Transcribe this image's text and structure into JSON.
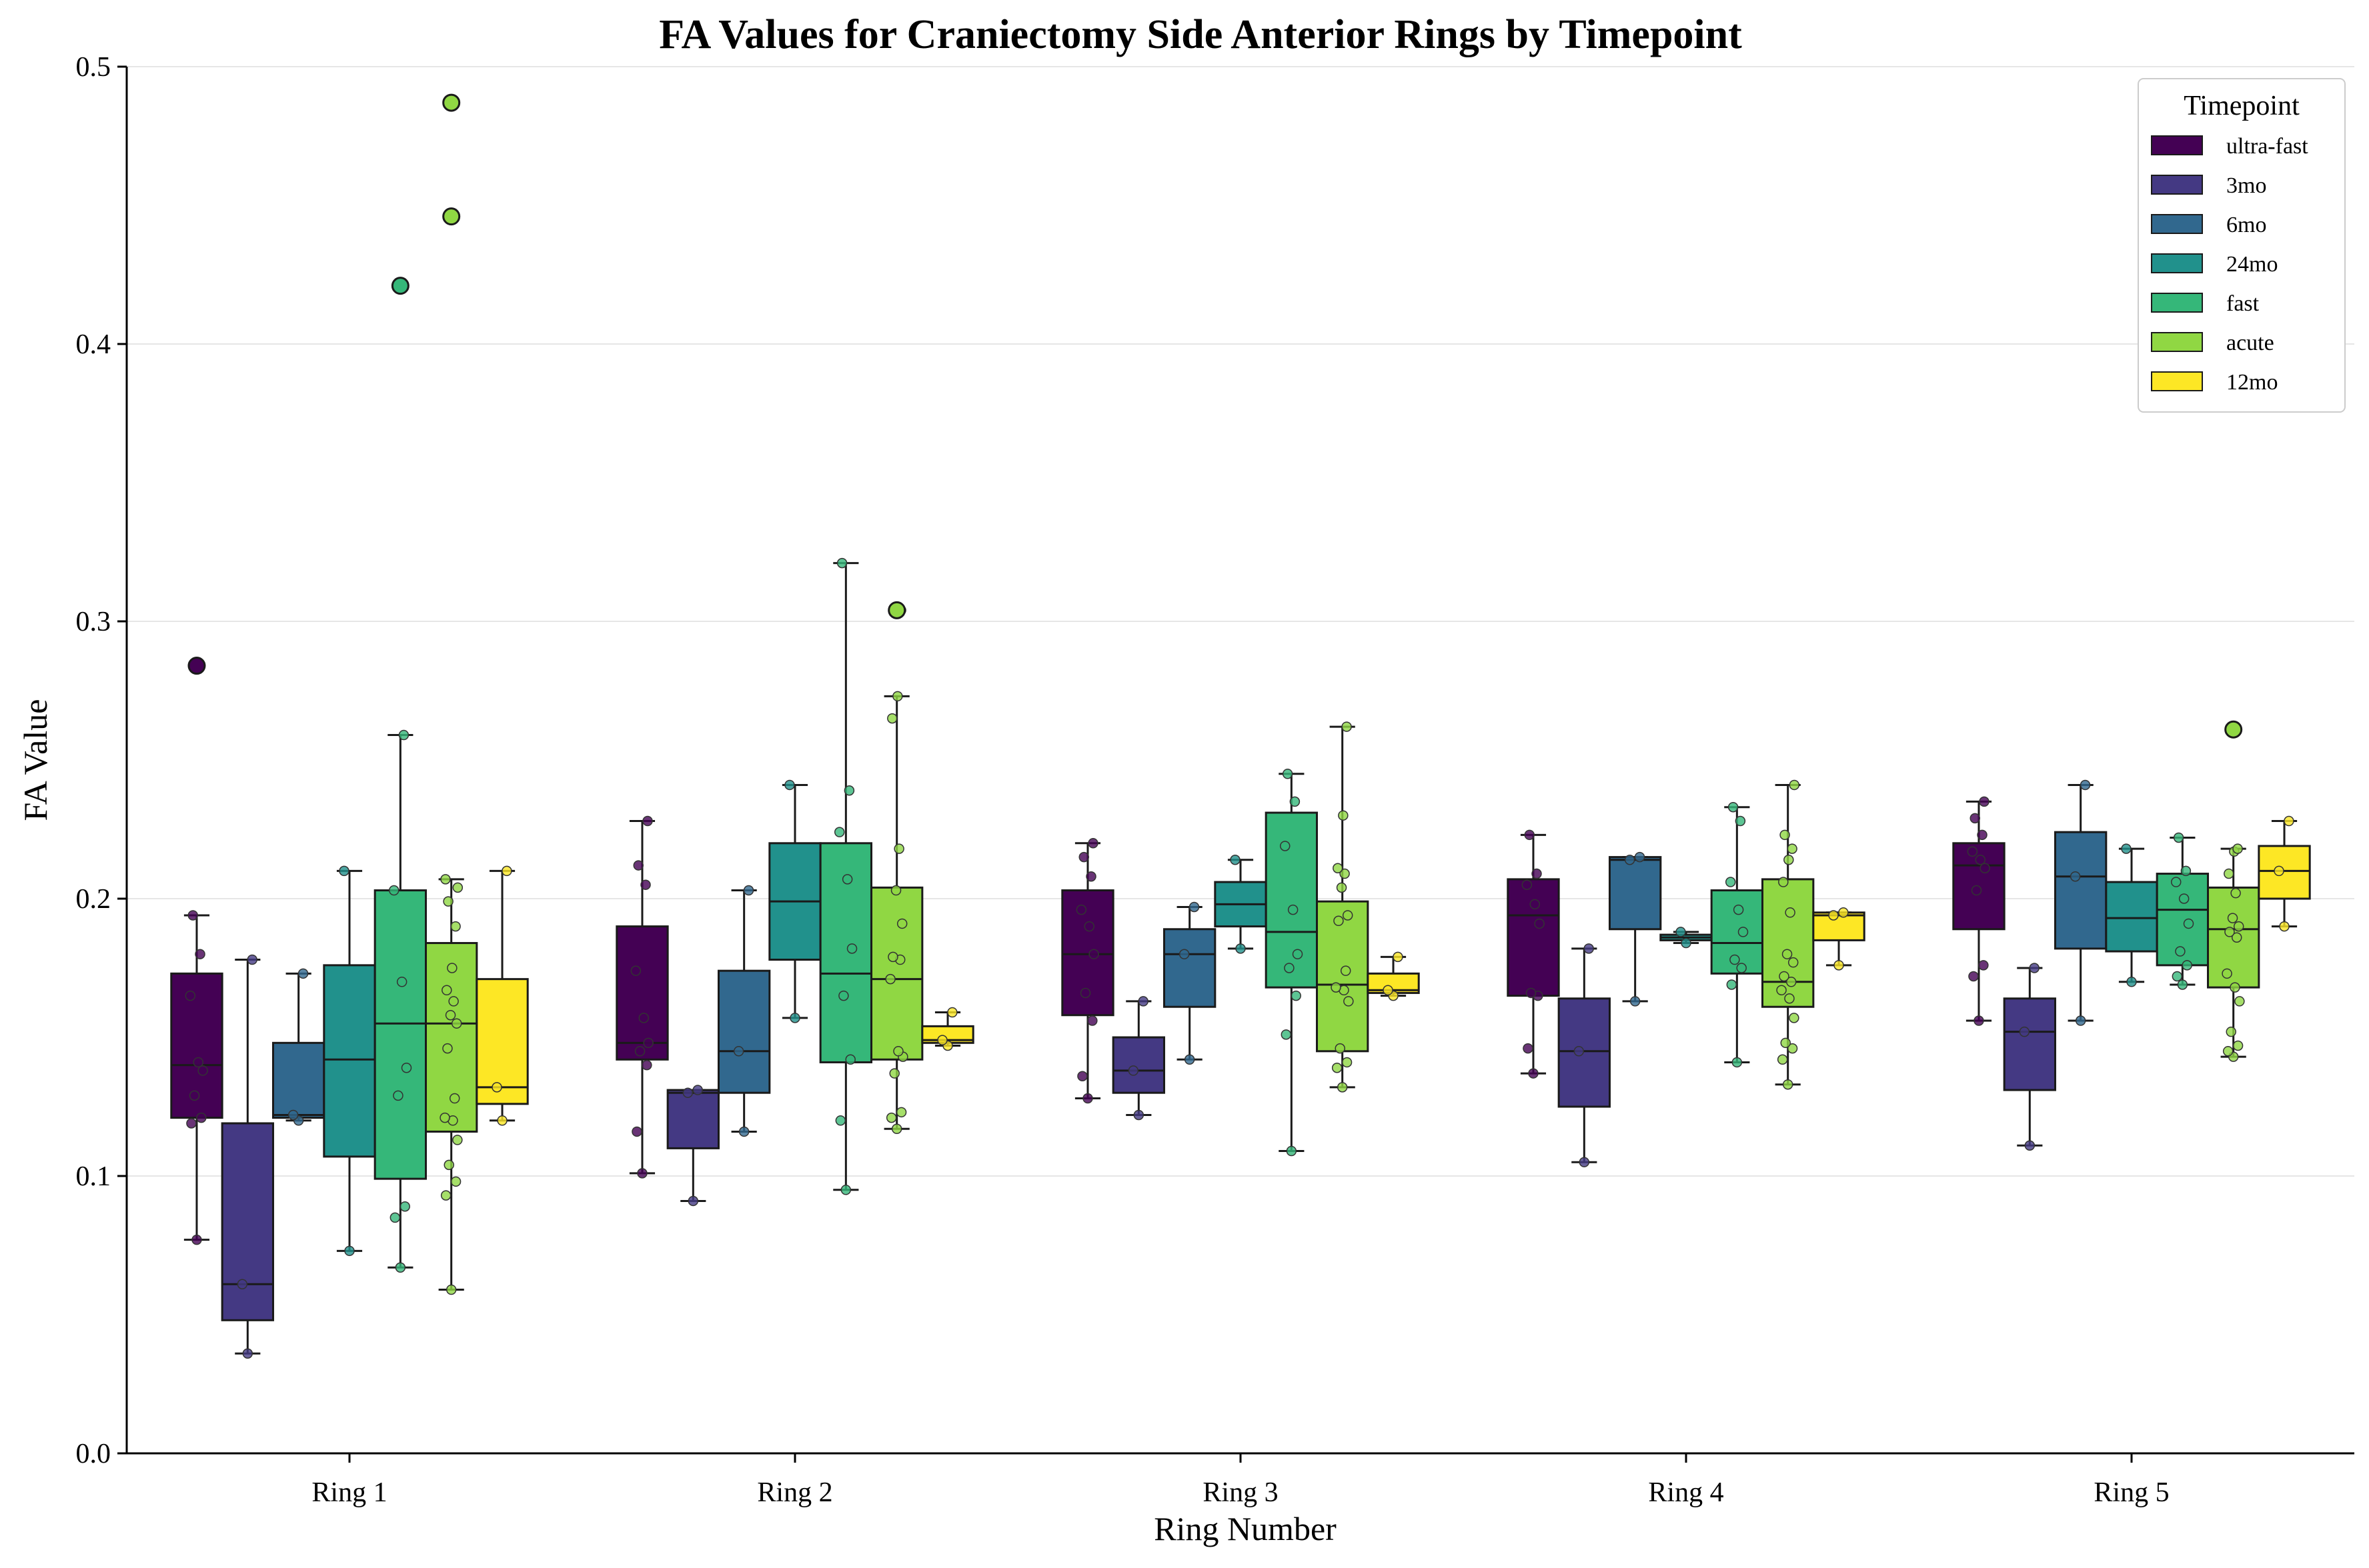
{
  "chart_data": {
    "type": "box",
    "title": "FA Values for Craniectomy Side Anterior Rings by Timepoint",
    "xlabel": "Ring Number",
    "ylabel": "FA Value",
    "ylim": [
      0.0,
      0.5
    ],
    "yticks": [
      0.0,
      0.1,
      0.2,
      0.3,
      0.4,
      0.5
    ],
    "grid": "horizontal",
    "categories": [
      "Ring 1",
      "Ring 2",
      "Ring 3",
      "Ring 4",
      "Ring 5"
    ],
    "legend": {
      "title": "Timepoint",
      "placement": "top-right"
    },
    "series": [
      {
        "name": "ultra-fast",
        "color": "#440154",
        "boxes": [
          {
            "whislo": 0.077,
            "q1": 0.121,
            "med": 0.14,
            "q3": 0.173,
            "whishi": 0.194,
            "fliers": [
              0.284
            ],
            "points": [
              0.077,
              0.119,
              0.121,
              0.129,
              0.138,
              0.141,
              0.165,
              0.18,
              0.194
            ]
          },
          {
            "whislo": 0.101,
            "q1": 0.142,
            "med": 0.148,
            "q3": 0.19,
            "whishi": 0.228,
            "fliers": [],
            "points": [
              0.101,
              0.116,
              0.14,
              0.145,
              0.148,
              0.157,
              0.174,
              0.205,
              0.212,
              0.228
            ]
          },
          {
            "whislo": 0.128,
            "q1": 0.158,
            "med": 0.18,
            "q3": 0.203,
            "whishi": 0.22,
            "fliers": [],
            "points": [
              0.128,
              0.136,
              0.156,
              0.166,
              0.18,
              0.19,
              0.196,
              0.208,
              0.215,
              0.22
            ]
          },
          {
            "whislo": 0.137,
            "q1": 0.165,
            "med": 0.194,
            "q3": 0.207,
            "whishi": 0.223,
            "fliers": [],
            "points": [
              0.137,
              0.146,
              0.165,
              0.166,
              0.191,
              0.198,
              0.205,
              0.209,
              0.223
            ]
          },
          {
            "whislo": 0.156,
            "q1": 0.189,
            "med": 0.212,
            "q3": 0.22,
            "whishi": 0.235,
            "fliers": [],
            "points": [
              0.156,
              0.172,
              0.176,
              0.203,
              0.211,
              0.214,
              0.217,
              0.223,
              0.229,
              0.235
            ]
          }
        ]
      },
      {
        "name": "3mo",
        "color": "#443983",
        "boxes": [
          {
            "whislo": 0.036,
            "q1": 0.048,
            "med": 0.061,
            "q3": 0.119,
            "whishi": 0.178,
            "fliers": [],
            "points": [
              0.036,
              0.061,
              0.178
            ]
          },
          {
            "whislo": 0.091,
            "q1": 0.11,
            "med": 0.13,
            "q3": 0.131,
            "whishi": 0.131,
            "fliers": [],
            "points": [
              0.091,
              0.13,
              0.131
            ]
          },
          {
            "whislo": 0.122,
            "q1": 0.13,
            "med": 0.138,
            "q3": 0.15,
            "whishi": 0.163,
            "fliers": [],
            "points": [
              0.122,
              0.138,
              0.163
            ]
          },
          {
            "whislo": 0.105,
            "q1": 0.125,
            "med": 0.145,
            "q3": 0.164,
            "whishi": 0.182,
            "fliers": [],
            "points": [
              0.105,
              0.145,
              0.182
            ]
          },
          {
            "whislo": 0.111,
            "q1": 0.131,
            "med": 0.152,
            "q3": 0.164,
            "whishi": 0.175,
            "fliers": [],
            "points": [
              0.111,
              0.152,
              0.175
            ]
          }
        ]
      },
      {
        "name": "6mo",
        "color": "#31688e",
        "boxes": [
          {
            "whislo": 0.12,
            "q1": 0.121,
            "med": 0.122,
            "q3": 0.148,
            "whishi": 0.173,
            "fliers": [],
            "points": [
              0.12,
              0.122,
              0.173
            ]
          },
          {
            "whislo": 0.116,
            "q1": 0.13,
            "med": 0.145,
            "q3": 0.174,
            "whishi": 0.203,
            "fliers": [],
            "points": [
              0.116,
              0.145,
              0.203
            ]
          },
          {
            "whislo": 0.142,
            "q1": 0.161,
            "med": 0.18,
            "q3": 0.189,
            "whishi": 0.197,
            "fliers": [],
            "points": [
              0.142,
              0.18,
              0.197
            ]
          },
          {
            "whislo": 0.163,
            "q1": 0.189,
            "med": 0.214,
            "q3": 0.215,
            "whishi": 0.215,
            "fliers": [],
            "points": [
              0.163,
              0.214,
              0.215
            ]
          },
          {
            "whislo": 0.156,
            "q1": 0.182,
            "med": 0.208,
            "q3": 0.224,
            "whishi": 0.241,
            "fliers": [],
            "points": [
              0.156,
              0.208,
              0.241
            ]
          }
        ]
      },
      {
        "name": "24mo",
        "color": "#21918c",
        "boxes": [
          {
            "whislo": 0.073,
            "q1": 0.107,
            "med": 0.142,
            "q3": 0.176,
            "whishi": 0.21,
            "fliers": [],
            "points": [
              0.073,
              0.21
            ]
          },
          {
            "whislo": 0.157,
            "q1": 0.178,
            "med": 0.199,
            "q3": 0.22,
            "whishi": 0.241,
            "fliers": [],
            "points": [
              0.157,
              0.241
            ]
          },
          {
            "whislo": 0.182,
            "q1": 0.19,
            "med": 0.198,
            "q3": 0.206,
            "whishi": 0.214,
            "fliers": [],
            "points": [
              0.182,
              0.214
            ]
          },
          {
            "whislo": 0.184,
            "q1": 0.185,
            "med": 0.186,
            "q3": 0.187,
            "whishi": 0.188,
            "fliers": [],
            "points": [
              0.184,
              0.188
            ]
          },
          {
            "whislo": 0.17,
            "q1": 0.181,
            "med": 0.193,
            "q3": 0.206,
            "whishi": 0.218,
            "fliers": [],
            "points": [
              0.17,
              0.218
            ]
          }
        ]
      },
      {
        "name": "fast",
        "color": "#35b779",
        "boxes": [
          {
            "whislo": 0.067,
            "q1": 0.099,
            "med": 0.155,
            "q3": 0.203,
            "whishi": 0.259,
            "fliers": [
              0.421
            ],
            "points": [
              0.067,
              0.085,
              0.089,
              0.129,
              0.139,
              0.17,
              0.203,
              0.259
            ]
          },
          {
            "whislo": 0.095,
            "q1": 0.141,
            "med": 0.173,
            "q3": 0.22,
            "whishi": 0.321,
            "fliers": [],
            "points": [
              0.095,
              0.12,
              0.142,
              0.165,
              0.182,
              0.207,
              0.224,
              0.239,
              0.321
            ]
          },
          {
            "whislo": 0.109,
            "q1": 0.168,
            "med": 0.188,
            "q3": 0.231,
            "whishi": 0.245,
            "fliers": [],
            "points": [
              0.109,
              0.151,
              0.165,
              0.175,
              0.18,
              0.196,
              0.219,
              0.235,
              0.245
            ]
          },
          {
            "whislo": 0.141,
            "q1": 0.173,
            "med": 0.184,
            "q3": 0.203,
            "whishi": 0.233,
            "fliers": [],
            "points": [
              0.141,
              0.169,
              0.175,
              0.178,
              0.188,
              0.196,
              0.206,
              0.228,
              0.233
            ]
          },
          {
            "whislo": 0.169,
            "q1": 0.176,
            "med": 0.196,
            "q3": 0.209,
            "whishi": 0.222,
            "fliers": [],
            "points": [
              0.169,
              0.172,
              0.176,
              0.181,
              0.191,
              0.2,
              0.206,
              0.21,
              0.222
            ]
          }
        ]
      },
      {
        "name": "acute",
        "color": "#90d743",
        "boxes": [
          {
            "whislo": 0.059,
            "q1": 0.116,
            "med": 0.155,
            "q3": 0.184,
            "whishi": 0.207,
            "fliers": [
              0.487,
              0.446
            ],
            "points": [
              0.059,
              0.093,
              0.098,
              0.104,
              0.113,
              0.12,
              0.121,
              0.128,
              0.146,
              0.155,
              0.158,
              0.163,
              0.167,
              0.175,
              0.19,
              0.199,
              0.204,
              0.207
            ]
          },
          {
            "whislo": 0.117,
            "q1": 0.142,
            "med": 0.171,
            "q3": 0.204,
            "whishi": 0.273,
            "fliers": [
              0.304
            ],
            "points": [
              0.117,
              0.121,
              0.123,
              0.137,
              0.143,
              0.145,
              0.171,
              0.178,
              0.179,
              0.191,
              0.203,
              0.218,
              0.265,
              0.273,
              0.304
            ]
          },
          {
            "whislo": 0.132,
            "q1": 0.145,
            "med": 0.169,
            "q3": 0.199,
            "whishi": 0.262,
            "fliers": [],
            "points": [
              0.132,
              0.139,
              0.141,
              0.146,
              0.163,
              0.167,
              0.168,
              0.174,
              0.192,
              0.194,
              0.204,
              0.209,
              0.211,
              0.23,
              0.262
            ]
          },
          {
            "whislo": 0.133,
            "q1": 0.161,
            "med": 0.17,
            "q3": 0.207,
            "whishi": 0.241,
            "fliers": [],
            "points": [
              0.133,
              0.142,
              0.146,
              0.148,
              0.157,
              0.164,
              0.167,
              0.17,
              0.172,
              0.177,
              0.18,
              0.195,
              0.206,
              0.214,
              0.218,
              0.223,
              0.241
            ]
          },
          {
            "whislo": 0.143,
            "q1": 0.168,
            "med": 0.189,
            "q3": 0.204,
            "whishi": 0.218,
            "fliers": [
              0.261
            ],
            "points": [
              0.143,
              0.145,
              0.147,
              0.152,
              0.163,
              0.168,
              0.173,
              0.186,
              0.188,
              0.19,
              0.193,
              0.202,
              0.209,
              0.217,
              0.218,
              0.261
            ]
          }
        ]
      },
      {
        "name": "12mo",
        "color": "#fde725",
        "boxes": [
          {
            "whislo": 0.12,
            "q1": 0.126,
            "med": 0.132,
            "q3": 0.171,
            "whishi": 0.21,
            "fliers": [],
            "points": [
              0.12,
              0.132,
              0.21
            ]
          },
          {
            "whislo": 0.147,
            "q1": 0.148,
            "med": 0.149,
            "q3": 0.154,
            "whishi": 0.159,
            "fliers": [],
            "points": [
              0.147,
              0.149,
              0.159
            ]
          },
          {
            "whislo": 0.165,
            "q1": 0.166,
            "med": 0.167,
            "q3": 0.173,
            "whishi": 0.179,
            "fliers": [],
            "points": [
              0.165,
              0.167,
              0.179
            ]
          },
          {
            "whislo": 0.176,
            "q1": 0.185,
            "med": 0.194,
            "q3": 0.195,
            "whishi": 0.195,
            "fliers": [],
            "points": [
              0.176,
              0.194,
              0.195
            ]
          },
          {
            "whislo": 0.19,
            "q1": 0.2,
            "med": 0.21,
            "q3": 0.219,
            "whishi": 0.228,
            "fliers": [],
            "points": [
              0.19,
              0.21,
              0.228
            ]
          }
        ]
      }
    ]
  }
}
